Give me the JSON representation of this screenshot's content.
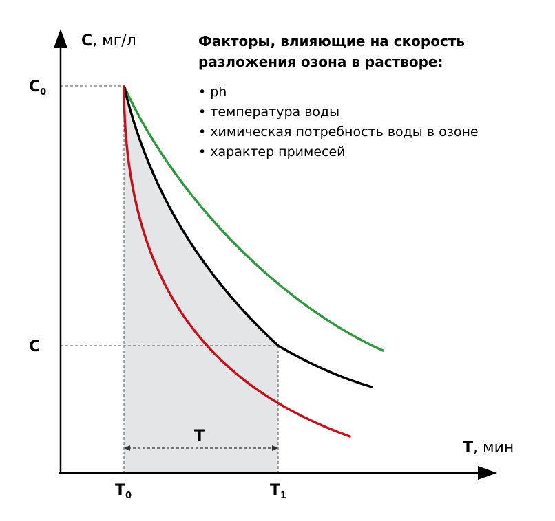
{
  "y_axis": {
    "symbol": "C",
    "unit": ", мг/л"
  },
  "x_axis": {
    "symbol": "T",
    "unit": ", мин"
  },
  "ticks": {
    "c0": {
      "main": "C",
      "sub": "0"
    },
    "c": {
      "main": "C"
    },
    "t0": {
      "main": "T",
      "sub": "0"
    },
    "t1": {
      "main": "T",
      "sub": "1"
    }
  },
  "interval_label": "T",
  "factors": {
    "title_line1": "Факторы, влияющие на скорость",
    "title_line2": "разложения озона в растворе:",
    "items": [
      "• ph",
      "• температура воды",
      "• химическая потребность воды в озоне",
      "• характер примесей"
    ]
  },
  "colors": {
    "green": "#2e9a3e",
    "black": "#000000",
    "red": "#c8101a",
    "shade": "#e4e5e7"
  },
  "curves": [
    {
      "color_key": "green",
      "rate": "slow"
    },
    {
      "color_key": "black",
      "rate": "medium"
    },
    {
      "color_key": "red",
      "rate": "fast"
    }
  ]
}
